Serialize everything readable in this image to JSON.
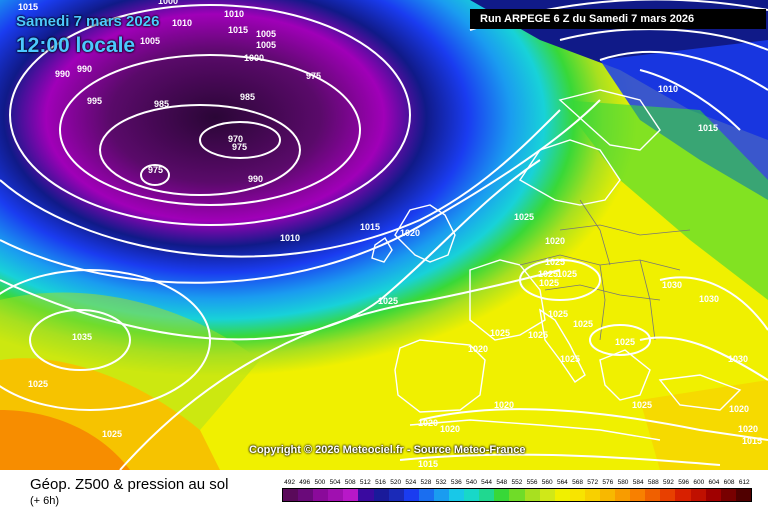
{
  "header": {
    "date_label": "Samedi 7 mars 2026",
    "time_label": "12:00 locale",
    "run_label": "Run ARPEGE 6 Z du Samedi 7 mars 2026"
  },
  "copyright": "Copyright © 2026 Meteociel.fr - Source Meteo-France",
  "footer": {
    "title": "Géop. Z500 & pression au sol",
    "subtitle": "(+ 6h)"
  },
  "map": {
    "isobar_labels": [
      "1015",
      "1000",
      "1005",
      "1010",
      "1005",
      "1010",
      "1015",
      "1005",
      "1000",
      "990",
      "990",
      "995",
      "985",
      "985",
      "975",
      "970",
      "975",
      "975",
      "990",
      "1010",
      "1015",
      "1020",
      "1025",
      "1020",
      "1025",
      "1025",
      "1025",
      "1025",
      "1025",
      "1025",
      "1025",
      "1030",
      "1030",
      "1030",
      "1025",
      "1025",
      "1025",
      "1020",
      "1020",
      "1020",
      "1020",
      "1015",
      "1010",
      "1015",
      "1025",
      "1035",
      "1025",
      "1025",
      "1020",
      "1015",
      "1020",
      "1025"
    ],
    "colors": {
      "low": "#3c0a46",
      "deep_purple": "#6a0a7a",
      "magenta": "#b000c0",
      "navy": "#101a88",
      "blue": "#1a3cf0",
      "sky": "#1a9cf0",
      "cyan": "#18d2d8",
      "green": "#38d838",
      "lime": "#a8e020",
      "yellow": "#f0f000",
      "gold": "#f8d000",
      "orange": "#f88000",
      "land_line": "#ffffff"
    }
  },
  "scale": {
    "labels": [
      "492",
      "496",
      "500",
      "504",
      "508",
      "512",
      "516",
      "520",
      "524",
      "528",
      "532",
      "536",
      "540",
      "544",
      "548",
      "552",
      "556",
      "560",
      "564",
      "568",
      "572",
      "576",
      "580",
      "584",
      "588",
      "592",
      "596",
      "600",
      "604",
      "608",
      "612"
    ],
    "colors": [
      "#5a0a5a",
      "#6a0a7a",
      "#8a0a9a",
      "#a010b0",
      "#b818c8",
      "#3a0aa0",
      "#1a1a9a",
      "#1a2ab8",
      "#1a3cf0",
      "#1a6ef0",
      "#1a9cf0",
      "#18c8e8",
      "#18d8c8",
      "#20d890",
      "#38d838",
      "#70dc28",
      "#a8e020",
      "#d0e818",
      "#f0f000",
      "#f8e400",
      "#f8d000",
      "#f8b800",
      "#f89c00",
      "#f88000",
      "#f06000",
      "#e84000",
      "#d82000",
      "#c01000",
      "#a00000",
      "#780000",
      "#500000"
    ]
  }
}
